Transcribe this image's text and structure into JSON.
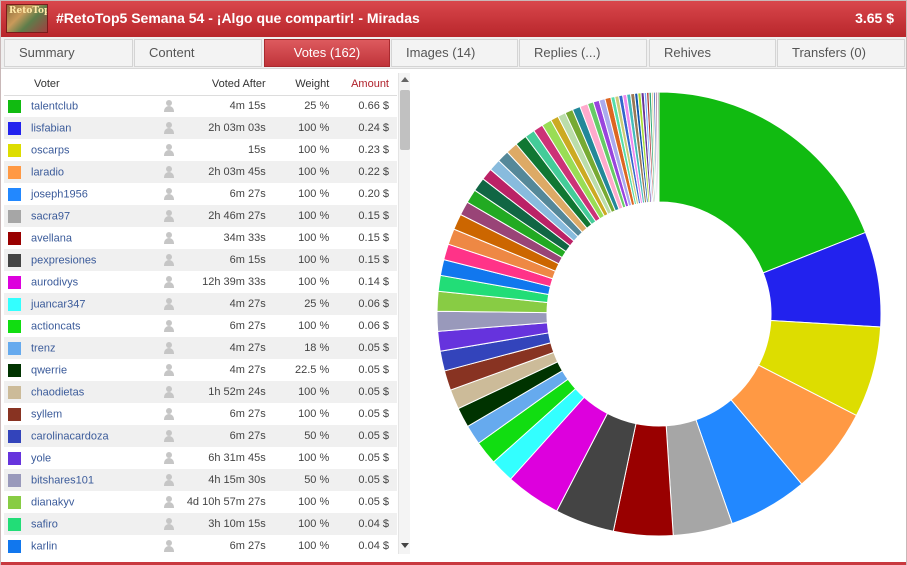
{
  "header": {
    "title": "#RetoTop5 Semana 54 - ¡Algo que compartir! - Miradas",
    "payout": "3.65 $",
    "thumbnail_text": "RetoTop"
  },
  "tabs": [
    {
      "label": "Summary",
      "active": false
    },
    {
      "label": "Content",
      "active": false
    },
    {
      "label": "Votes (162)",
      "active": true
    },
    {
      "label": "Images (14)",
      "active": false
    },
    {
      "label": "Replies (...)",
      "active": false
    },
    {
      "label": "Rehives",
      "active": false
    },
    {
      "label": "Transfers (0)",
      "active": false
    }
  ],
  "table": {
    "headers": {
      "voter": "Voter",
      "voted_after": "Voted After",
      "weight": "Weight",
      "amount": "Amount"
    },
    "rows": [
      {
        "color": "#11bb11",
        "voter": "talentclub",
        "voted_after": "4m 15s",
        "weight": "25 %",
        "amount": "0.66 $"
      },
      {
        "color": "#2222ee",
        "voter": "lisfabian",
        "voted_after": "2h 03m 03s",
        "weight": "100 %",
        "amount": "0.24 $"
      },
      {
        "color": "#dddd00",
        "voter": "oscarps",
        "voted_after": "15s",
        "weight": "100 %",
        "amount": "0.23 $"
      },
      {
        "color": "#ff9944",
        "voter": "laradio",
        "voted_after": "2h 03m 45s",
        "weight": "100 %",
        "amount": "0.22 $"
      },
      {
        "color": "#2288ff",
        "voter": "joseph1956",
        "voted_after": "6m 27s",
        "weight": "100 %",
        "amount": "0.20 $"
      },
      {
        "color": "#a6a6a6",
        "voter": "sacra97",
        "voted_after": "2h 46m 27s",
        "weight": "100 %",
        "amount": "0.15 $"
      },
      {
        "color": "#990000",
        "voter": "avellana",
        "voted_after": "34m 33s",
        "weight": "100 %",
        "amount": "0.15 $"
      },
      {
        "color": "#444444",
        "voter": "pexpresiones",
        "voted_after": "6m 15s",
        "weight": "100 %",
        "amount": "0.15 $"
      },
      {
        "color": "#dd00dd",
        "voter": "aurodivys",
        "voted_after": "12h 39m 33s",
        "weight": "100 %",
        "amount": "0.14 $"
      },
      {
        "color": "#33ffff",
        "voter": "juancar347",
        "voted_after": "4m 27s",
        "weight": "25 %",
        "amount": "0.06 $"
      },
      {
        "color": "#11dd11",
        "voter": "actioncats",
        "voted_after": "6m 27s",
        "weight": "100 %",
        "amount": "0.06 $"
      },
      {
        "color": "#66aaee",
        "voter": "trenz",
        "voted_after": "4m 27s",
        "weight": "18 %",
        "amount": "0.05 $"
      },
      {
        "color": "#003300",
        "voter": "qwerrie",
        "voted_after": "4m 27s",
        "weight": "22.5 %",
        "amount": "0.05 $"
      },
      {
        "color": "#ccbb99",
        "voter": "chaodietas",
        "voted_after": "1h 52m 24s",
        "weight": "100 %",
        "amount": "0.05 $"
      },
      {
        "color": "#883322",
        "voter": "syllem",
        "voted_after": "6m 27s",
        "weight": "100 %",
        "amount": "0.05 $"
      },
      {
        "color": "#3344bb",
        "voter": "carolinacardoza",
        "voted_after": "6m 27s",
        "weight": "50 %",
        "amount": "0.05 $"
      },
      {
        "color": "#6633dd",
        "voter": "yole",
        "voted_after": "6h 31m 45s",
        "weight": "100 %",
        "amount": "0.05 $"
      },
      {
        "color": "#9999bb",
        "voter": "bitshares101",
        "voted_after": "4h 15m 30s",
        "weight": "50 %",
        "amount": "0.05 $"
      },
      {
        "color": "#88cc44",
        "voter": "dianakyv",
        "voted_after": "4d 10h 57m 27s",
        "weight": "100 %",
        "amount": "0.05 $"
      },
      {
        "color": "#22dd77",
        "voter": "safiro",
        "voted_after": "3h 10m 15s",
        "weight": "100 %",
        "amount": "0.04 $"
      },
      {
        "color": "#1177ee",
        "voter": "karlin",
        "voted_after": "6m 27s",
        "weight": "100 %",
        "amount": "0.04 $"
      }
    ]
  },
  "chart_data": {
    "type": "pie",
    "values": [
      0.66,
      0.24,
      0.23,
      0.22,
      0.2,
      0.15,
      0.15,
      0.15,
      0.14,
      0.06,
      0.06,
      0.05,
      0.05,
      0.05,
      0.05,
      0.05,
      0.05,
      0.05,
      0.05,
      0.04,
      0.04,
      0.04,
      0.04,
      0.04,
      0.035,
      0.035,
      0.035,
      0.03,
      0.03,
      0.03,
      0.03,
      0.03,
      0.025,
      0.025,
      0.025,
      0.02,
      0.02,
      0.02,
      0.02,
      0.02,
      0.015,
      0.015,
      0.015,
      0.015,
      0.01,
      0.01,
      0.01,
      0.01,
      0.01,
      0.01,
      0.008,
      0.008,
      0.008,
      0.006,
      0.006,
      0.006,
      0.005,
      0.005,
      0.005,
      0.004
    ],
    "colors": [
      "#11bb11",
      "#2222ee",
      "#dddd00",
      "#ff9944",
      "#2288ff",
      "#a6a6a6",
      "#990000",
      "#444444",
      "#dd00dd",
      "#33ffff",
      "#11dd11",
      "#66aaee",
      "#003300",
      "#ccbb99",
      "#883322",
      "#3344bb",
      "#6633dd",
      "#9999bb",
      "#88cc44",
      "#22dd77",
      "#1177ee",
      "#ff3388",
      "#ee8844",
      "#cc6600",
      "#994477",
      "#22aa22",
      "#116644",
      "#bb2266",
      "#88bbdd",
      "#558899",
      "#ddaa66",
      "#117733",
      "#44cc99",
      "#cc3377",
      "#99dd55",
      "#ccaa22",
      "#bbddaa",
      "#77aa33",
      "#228899",
      "#ffaacc",
      "#66cc66",
      "#9944dd",
      "#aaaaee",
      "#dd6622",
      "#55ddaa",
      "#cccc77",
      "#3366cc",
      "#ee88ee",
      "#44bbbb",
      "#997755",
      "#1155aa",
      "#aadd33",
      "#663399",
      "#77aaff",
      "#aa3333",
      "#33aa77",
      "#ddcc99",
      "#5577bb",
      "#bb88aa",
      "#888888"
    ]
  }
}
